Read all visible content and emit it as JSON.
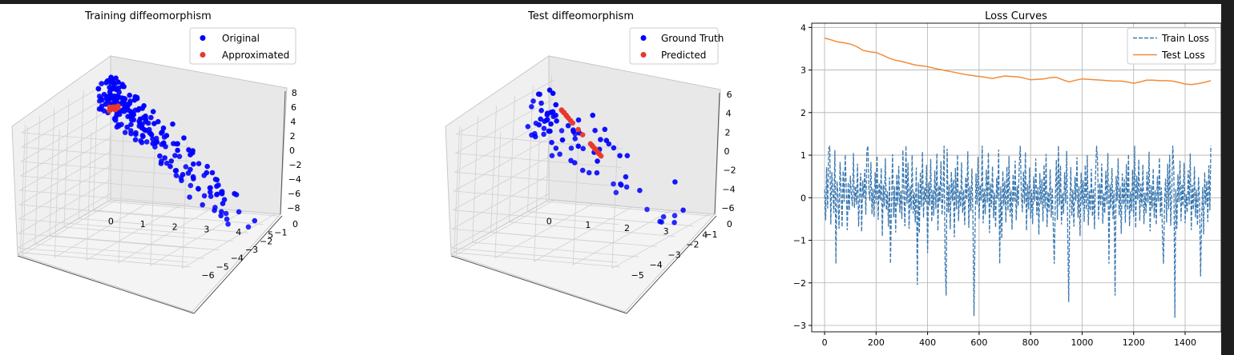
{
  "chart_data": [
    {
      "type": "scatter3d",
      "title": "Training diffeomorphism",
      "legend": {
        "placement": "top-right",
        "entries": [
          "Original",
          "Approximated"
        ]
      },
      "x_ticks": [
        "0",
        "1",
        "2",
        "3",
        "4",
        "5"
      ],
      "y_ticks": [
        "0",
        "−1",
        "−2",
        "−3",
        "−4",
        "−5",
        "−6"
      ],
      "z_ticks": [
        "8",
        "6",
        "4",
        "2",
        "0",
        "−2",
        "−4",
        "−6",
        "−8"
      ],
      "xlim": [
        0,
        5.2
      ],
      "ylim": [
        -6,
        0
      ],
      "zlim": [
        -8,
        8
      ],
      "colors": {
        "Original": "#0000ff",
        "Approximated": "#e8382b"
      },
      "series": [
        {
          "name": "Original",
          "points": []
        },
        {
          "name": "Approximated",
          "points": []
        }
      ]
    },
    {
      "type": "scatter3d",
      "title": "Test diffeomorphism",
      "legend": {
        "placement": "top-right",
        "entries": [
          "Ground Truth",
          "Predicted"
        ]
      },
      "x_ticks": [
        "0",
        "1",
        "2",
        "3",
        "4"
      ],
      "y_ticks": [
        "0",
        "−1",
        "−2",
        "−3",
        "−4",
        "−5"
      ],
      "z_ticks": [
        "6",
        "4",
        "2",
        "0",
        "−2",
        "−4",
        "−6"
      ],
      "xlim": [
        0,
        4.6
      ],
      "ylim": [
        -5.5,
        0
      ],
      "zlim": [
        -7,
        7
      ],
      "colors": {
        "Ground Truth": "#0000ff",
        "Predicted": "#e8382b"
      },
      "series": [
        {
          "name": "Ground Truth",
          "points": []
        },
        {
          "name": "Predicted",
          "points": []
        }
      ]
    },
    {
      "type": "line",
      "title": "Loss Curves",
      "grid": true,
      "legend": {
        "placement": "top-right",
        "entries": [
          "Train Loss",
          "Test Loss"
        ]
      },
      "xlim": [
        -50,
        1540
      ],
      "ylim": [
        -3.15,
        4.1
      ],
      "x_ticks": [
        0,
        200,
        400,
        600,
        800,
        1000,
        1200,
        1400
      ],
      "y_ticks": [
        4,
        3,
        2,
        1,
        0,
        -1,
        -2,
        -3
      ],
      "colors": {
        "Train Loss": "#3a78b0",
        "Test Loss": "#f08c3c"
      },
      "series": [
        {
          "name": "Test Loss",
          "x": [
            0,
            25,
            50,
            75,
            100,
            125,
            150,
            175,
            200,
            225,
            250,
            275,
            300,
            325,
            350,
            375,
            400,
            425,
            450,
            475,
            500,
            525,
            550,
            575,
            600,
            625,
            650,
            675,
            700,
            725,
            750,
            775,
            800,
            825,
            850,
            875,
            900,
            925,
            950,
            975,
            1000,
            1025,
            1050,
            1075,
            1100,
            1125,
            1150,
            1175,
            1200,
            1225,
            1250,
            1275,
            1300,
            1325,
            1350,
            1375,
            1400,
            1425,
            1450,
            1475,
            1500
          ],
          "values": [
            3.75,
            3.71,
            3.66,
            3.64,
            3.61,
            3.55,
            3.46,
            3.43,
            3.41,
            3.35,
            3.28,
            3.23,
            3.2,
            3.16,
            3.12,
            3.1,
            3.08,
            3.04,
            3.01,
            2.98,
            2.95,
            2.92,
            2.89,
            2.87,
            2.85,
            2.83,
            2.8,
            2.83,
            2.86,
            2.85,
            2.84,
            2.81,
            2.77,
            2.78,
            2.79,
            2.82,
            2.83,
            2.77,
            2.72,
            2.76,
            2.79,
            2.78,
            2.77,
            2.76,
            2.75,
            2.74,
            2.74,
            2.72,
            2.69,
            2.72,
            2.76,
            2.76,
            2.75,
            2.75,
            2.74,
            2.71,
            2.67,
            2.66,
            2.68,
            2.71,
            2.75
          ]
        },
        {
          "name": "Train Loss",
          "x_start": 0,
          "x_step": 4,
          "values": [
            0.2,
            -0.53,
            0.72,
            -0.25,
            1.15,
            0.11,
            -0.63,
            0.6,
            0.12,
            -0.36,
            1.12,
            -0.42,
            0.39,
            0.06,
            -0.73,
            0.84,
            0.18,
            -0.69,
            0.63,
            -0.1,
            1.01,
            0.23,
            -0.76,
            0.36,
            -0.3,
            0.52,
            0.07,
            -0.2,
            1.05,
            -0.24,
            0.27,
            -0.16,
            0.8,
            -0.68,
            0.05,
            0.58,
            -0.8,
            0.41,
            -0.01,
            0.67,
            -0.4,
            1.1,
            -0.59,
            0.15,
            -0.07,
            0.84,
            -0.39,
            0.22,
            -0.45,
            0.6,
            -0.14,
            0.98,
            -0.52,
            0.35,
            -0.06,
            0.7,
            -0.9,
            0.3,
            -0.21,
            0.93,
            -0.29,
            0.15,
            -0.68,
            0.48,
            0.13,
            -0.09,
            1.02,
            -0.46,
            0.26,
            -0.82,
            0.55,
            -0.17,
            0.75,
            -0.35,
            0.16,
            -0.5,
            1.12,
            0.04,
            -0.67,
            0.4,
            -0.14,
            0.82,
            -0.73,
            0.28,
            -0.28,
            1.0,
            -0.37,
            0.13,
            -0.58,
            0.71,
            -0.04,
            0.36,
            -0.84,
            0.6,
            -0.22,
            1.08,
            -0.47,
            0.24,
            -0.12,
            0.77,
            -1.3,
            0.36,
            -0.19,
            0.91,
            -0.57,
            0.18,
            -0.42,
            0.64,
            -0.26,
            1.04,
            -0.78,
            0.29,
            -0.1,
            0.86,
            -0.41,
            0.07,
            -0.61,
            0.52,
            -0.18,
            1.15,
            -0.35,
            0.31,
            -0.74,
            0.61,
            -0.08,
            0.42,
            -0.93,
            0.7,
            -0.27,
            1.01,
            -0.55,
            0.15,
            -0.21,
            0.83,
            -0.36,
            0.19,
            -0.64,
            0.48,
            -0.05,
            1.09,
            -0.71,
            0.27,
            -0.31,
            0.69,
            -0.45,
            0.24,
            -0.8,
            0.57,
            -0.16,
            0.96,
            -0.5,
            0.3,
            -0.07,
            0.81,
            -0.6,
            0.21,
            -0.39,
            0.66,
            -0.12,
            1.06,
            -0.83,
            0.33,
            -0.23,
            0.74,
            -0.48,
            0.12,
            -0.7,
            0.47,
            -0.03,
            1.13,
            -0.37,
            0.26,
            -0.96,
            0.63,
            -0.19,
            0.39,
            -0.58,
            0.73,
            -0.3,
            0.98,
            -0.44,
            0.17,
            -0.75,
            0.55,
            -0.11,
            0.87,
            -0.53,
            0.28,
            -0.2,
            0.79,
            -0.66,
            0.09,
            -0.34,
            0.62,
            -0.14,
            1.07,
            -0.77,
            0.32,
            -0.27,
            0.71,
            -0.49,
            0.2,
            -0.62,
            0.5,
            -0.09,
            0.92,
            -0.41,
            0.25,
            -0.87,
            0.58,
            -0.15,
            0.44,
            -0.56,
            0.78,
            -0.25,
            1.03,
            -0.69,
            0.14,
            -0.33,
            0.67,
            -0.46,
            0.23,
            -0.72,
            0.53,
            -0.06,
            0.89,
            -0.52,
            0.35,
            -0.18,
            0.76,
            -0.63,
            0.11,
            -0.38,
            0.6,
            -0.13,
            1.1,
            -0.8,
            0.3,
            -0.24,
            0.72,
            -0.43,
            0.19,
            -0.68,
            0.49,
            -0.08,
            0.95,
            -0.47,
            0.27,
            -0.9,
            0.59,
            -0.17,
            0.41,
            -0.57,
            0.77,
            -0.28,
            1.0,
            -0.65,
            0.16,
            -0.31,
            0.68,
            -0.44,
            0.22,
            -0.74,
            0.54,
            -0.1,
            0.88,
            -0.51,
            0.34,
            -0.19,
            0.8,
            -0.61,
            0.1,
            -0.36,
            0.63,
            -0.15,
            1.05,
            -0.78,
            0.31,
            -0.26,
            0.7,
            -0.5,
            0.18,
            -0.66,
            0.51,
            -0.07,
            0.93,
            -0.42,
            0.26,
            -0.85,
            0.57,
            -0.16,
            0.43,
            -0.59,
            0.79,
            -0.29,
            1.02,
            -0.67,
            0.15,
            -0.32,
            0.66,
            -0.45,
            0.21,
            -0.71,
            0.52,
            -0.05,
            0.9,
            -0.54,
            0.33,
            -0.21,
            0.78,
            -0.62,
            0.12,
            -0.37,
            0.61,
            -0.12,
            1.08,
            -0.79,
            0.29,
            -0.25,
            0.69,
            -0.48,
            0.17,
            -0.64,
            0.5,
            -0.09,
            0.94,
            -0.43,
            0.24,
            -0.88,
            0.56,
            -0.14,
            0.45,
            -0.58,
            0.8,
            -0.27,
            1.01,
            -0.66,
            0.13,
            -0.34,
            0.65,
            -0.47,
            0.2,
            -0.73,
            0.55,
            -0.11,
            0.87,
            -0.55,
            0.32,
            -0.2,
            0.82,
            -0.6,
            0.08,
            -0.35,
            0.64,
            -0.16,
            1.04,
            -0.76,
            0.3,
            -0.28,
            0.73,
            -0.46,
            0.19,
            -0.65,
            0.48,
            -0.06,
            0.96,
            -0.44,
            0.25,
            -0.86,
            0.6,
            -0.17,
            0.4,
            -0.57,
            0.76,
            -0.3,
            1.03,
            -0.68,
            0.14,
            -0.33,
            0.67,
            -0.46,
            0.22,
            -0.7,
            0.53,
            -0.08,
            0.91,
            -0.52,
            0.36,
            -0.22,
            0.77,
            -0.63,
            0.11,
            -0.39,
            0.62,
            -0.13,
            1.07,
            -0.77,
            0.28,
            -0.24,
            0.71,
            -0.49,
            0.16
          ]
        }
      ]
    }
  ]
}
